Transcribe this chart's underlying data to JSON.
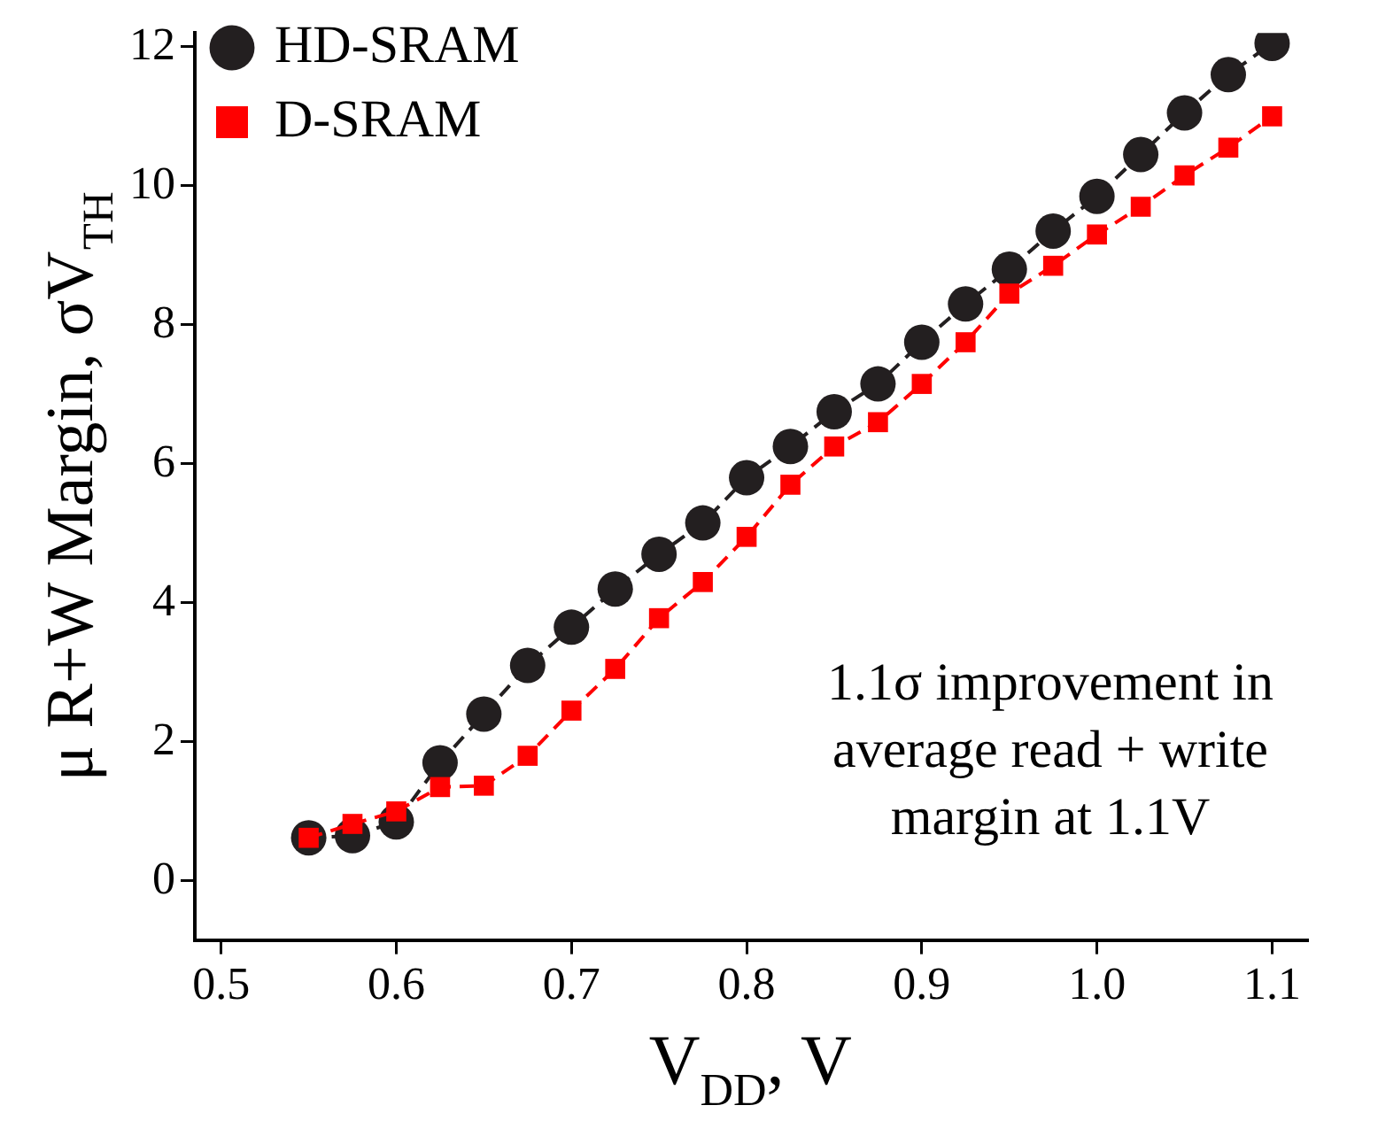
{
  "chart_data": {
    "type": "line",
    "xlabel": "V$_{DD}$, V",
    "ylabel": "μ R+W Margin, σV$_{TH}$",
    "x": [
      0.55,
      0.575,
      0.6,
      0.625,
      0.65,
      0.675,
      0.7,
      0.725,
      0.75,
      0.775,
      0.8,
      0.825,
      0.85,
      0.875,
      0.9,
      0.925,
      0.95,
      0.975,
      1.0,
      1.025,
      1.05,
      1.075,
      1.1
    ],
    "series": [
      {
        "name": "HD-SRAM",
        "color": "#231f20",
        "marker": "circle",
        "values": [
          0.62,
          0.65,
          0.85,
          1.7,
          2.4,
          3.1,
          3.65,
          4.2,
          4.7,
          5.15,
          5.8,
          6.25,
          6.75,
          7.15,
          7.75,
          8.3,
          8.8,
          9.35,
          9.85,
          10.45,
          11.05,
          11.6,
          12.05
        ]
      },
      {
        "name": "D-SRAM",
        "color": "#ff0000",
        "marker": "square",
        "values": [
          0.62,
          0.82,
          1.0,
          1.35,
          1.37,
          1.8,
          2.45,
          3.05,
          3.78,
          4.3,
          4.95,
          5.7,
          6.25,
          6.6,
          7.15,
          7.75,
          8.45,
          8.85,
          9.3,
          9.7,
          10.15,
          10.55,
          11.0
        ]
      }
    ],
    "xlim": [
      0.485,
      1.12
    ],
    "xticks": [
      {
        "value": 0.5,
        "label": "0.5"
      },
      {
        "value": 0.6,
        "label": "0.6"
      },
      {
        "value": 0.7,
        "label": "0.7"
      },
      {
        "value": 0.8,
        "label": "0.8"
      },
      {
        "value": 0.9,
        "label": "0.9"
      },
      {
        "value": 1.0,
        "label": "1.0"
      },
      {
        "value": 1.1,
        "label": "1.1"
      }
    ],
    "ylim": [
      -0.85,
      12.2
    ],
    "yticks": [
      0,
      2,
      4,
      6,
      8,
      10,
      12
    ],
    "annotations": [
      "1.1σ improvement in\naverage read + write\nmargin at 1.1V"
    ],
    "legend": "top left",
    "grid": false,
    "line_style": "dashed"
  }
}
